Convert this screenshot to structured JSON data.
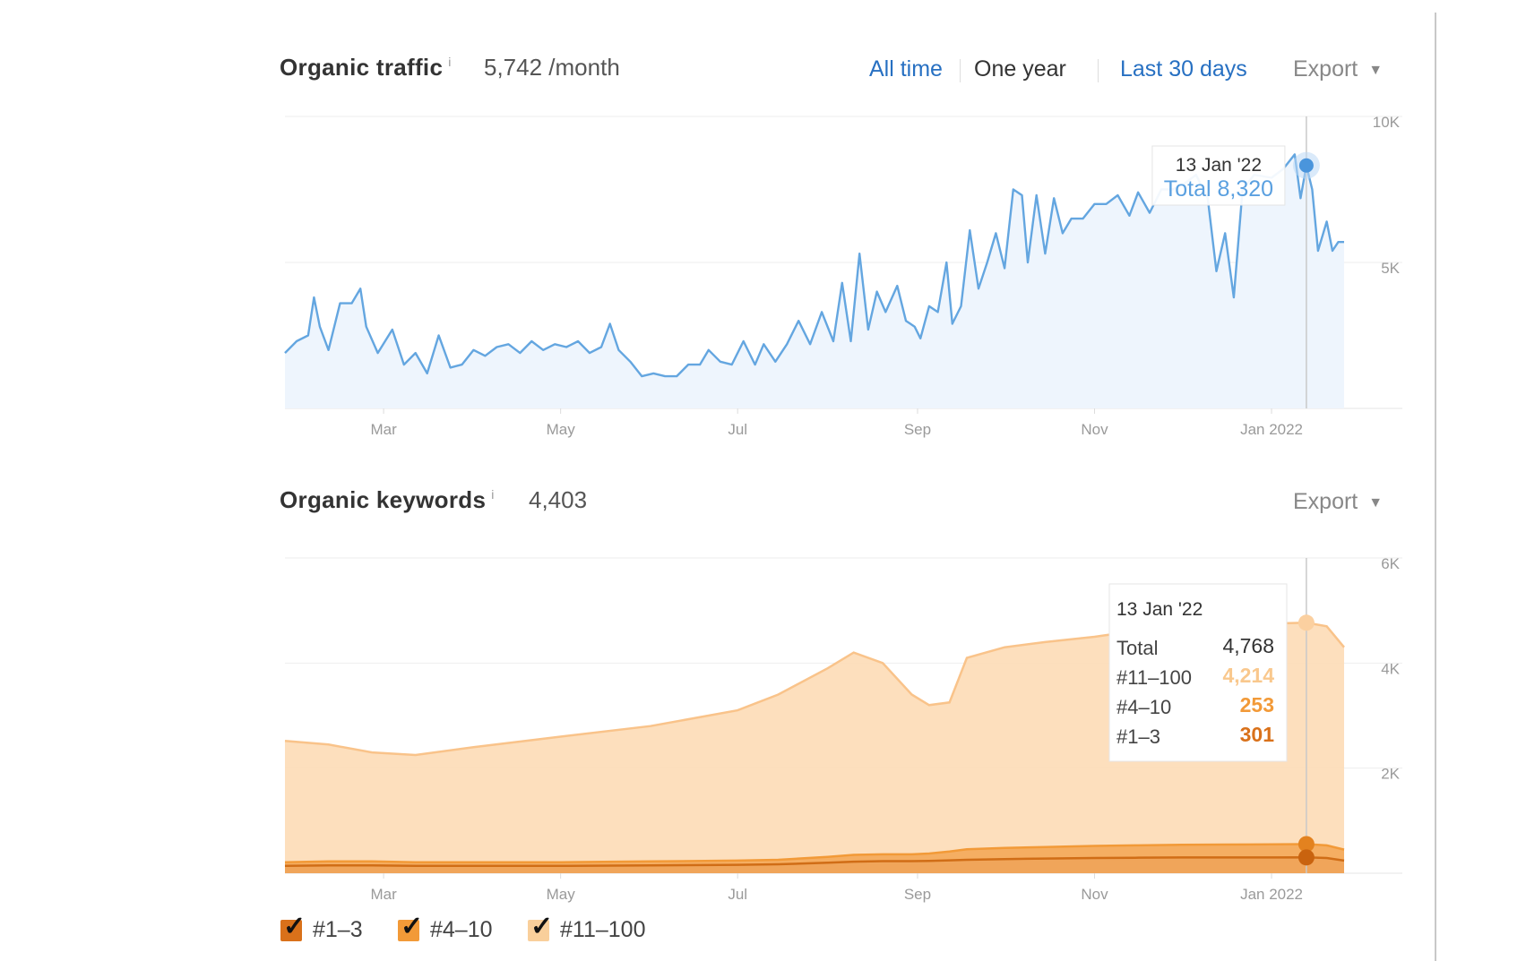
{
  "traffic": {
    "title": "Organic traffic",
    "info": "i",
    "value": "5,742 /month",
    "tabs": [
      {
        "label": "All time",
        "active": false
      },
      {
        "label": "One year",
        "active": true
      },
      {
        "label": "Last 30 days",
        "active": false
      }
    ],
    "export_label": "Export",
    "caret": "▼"
  },
  "keywords": {
    "title": "Organic keywords",
    "info": "i",
    "value": "4,403",
    "export_label": "Export",
    "caret": "▼"
  },
  "legend": [
    {
      "label": "#1–3",
      "color": "#d9711a",
      "check": "✓"
    },
    {
      "label": "#4–10",
      "color": "#f29a38",
      "check": "✓"
    },
    {
      "label": "#11–100",
      "color": "#f9cf9b",
      "check": "✓"
    }
  ],
  "colors": {
    "traffic_line": "#64a6e0",
    "traffic_fill": "#eef5fd",
    "tooltip_total": "#5aa0e0"
  },
  "chart_data": [
    {
      "type": "line",
      "title": "Organic traffic",
      "x_range": [
        "2021-01-26",
        "2022-01-26"
      ],
      "x_ticks": [
        {
          "date": "2021-03-01",
          "label": "Mar"
        },
        {
          "date": "2021-05-01",
          "label": "May"
        },
        {
          "date": "2021-07-01",
          "label": "Jul"
        },
        {
          "date": "2021-09-01",
          "label": "Sep"
        },
        {
          "date": "2021-11-01",
          "label": "Nov"
        },
        {
          "date": "2022-01-01",
          "label": "Jan 2022"
        }
      ],
      "y_ticks": [
        {
          "value": 10000,
          "label": "10K"
        },
        {
          "value": 5000,
          "label": "5K"
        }
      ],
      "ylim": [
        0,
        10000
      ],
      "grid": true,
      "series": [
        {
          "points": [
            [
              "2021-01-26",
              1900
            ],
            [
              "2021-01-30",
              2300
            ],
            [
              "2021-02-03",
              2500
            ],
            [
              "2021-02-05",
              3800
            ],
            [
              "2021-02-07",
              2800
            ],
            [
              "2021-02-10",
              2000
            ],
            [
              "2021-02-14",
              3600
            ],
            [
              "2021-02-18",
              3600
            ],
            [
              "2021-02-21",
              4100
            ],
            [
              "2021-02-23",
              2800
            ],
            [
              "2021-02-27",
              1900
            ],
            [
              "2021-03-04",
              2700
            ],
            [
              "2021-03-08",
              1500
            ],
            [
              "2021-03-12",
              1900
            ],
            [
              "2021-03-16",
              1200
            ],
            [
              "2021-03-20",
              2500
            ],
            [
              "2021-03-24",
              1400
            ],
            [
              "2021-03-28",
              1500
            ],
            [
              "2021-04-01",
              2000
            ],
            [
              "2021-04-05",
              1800
            ],
            [
              "2021-04-09",
              2100
            ],
            [
              "2021-04-13",
              2200
            ],
            [
              "2021-04-17",
              1900
            ],
            [
              "2021-04-21",
              2300
            ],
            [
              "2021-04-25",
              2000
            ],
            [
              "2021-04-29",
              2200
            ],
            [
              "2021-05-03",
              2100
            ],
            [
              "2021-05-07",
              2300
            ],
            [
              "2021-05-11",
              1900
            ],
            [
              "2021-05-15",
              2100
            ],
            [
              "2021-05-18",
              2900
            ],
            [
              "2021-05-21",
              2000
            ],
            [
              "2021-05-25",
              1600
            ],
            [
              "2021-05-29",
              1100
            ],
            [
              "2021-06-02",
              1200
            ],
            [
              "2021-06-06",
              1100
            ],
            [
              "2021-06-10",
              1100
            ],
            [
              "2021-06-14",
              1500
            ],
            [
              "2021-06-18",
              1500
            ],
            [
              "2021-06-21",
              2000
            ],
            [
              "2021-06-25",
              1600
            ],
            [
              "2021-06-29",
              1500
            ],
            [
              "2021-07-03",
              2300
            ],
            [
              "2021-07-07",
              1500
            ],
            [
              "2021-07-10",
              2200
            ],
            [
              "2021-07-14",
              1600
            ],
            [
              "2021-07-18",
              2200
            ],
            [
              "2021-07-22",
              3000
            ],
            [
              "2021-07-26",
              2200
            ],
            [
              "2021-07-30",
              3300
            ],
            [
              "2021-08-03",
              2300
            ],
            [
              "2021-08-06",
              4300
            ],
            [
              "2021-08-09",
              2300
            ],
            [
              "2021-08-12",
              5300
            ],
            [
              "2021-08-15",
              2700
            ],
            [
              "2021-08-18",
              4000
            ],
            [
              "2021-08-21",
              3300
            ],
            [
              "2021-08-25",
              4200
            ],
            [
              "2021-08-28",
              3000
            ],
            [
              "2021-08-31",
              2800
            ],
            [
              "2021-09-02",
              2400
            ],
            [
              "2021-09-05",
              3500
            ],
            [
              "2021-09-08",
              3300
            ],
            [
              "2021-09-11",
              5000
            ],
            [
              "2021-09-13",
              2900
            ],
            [
              "2021-09-16",
              3500
            ],
            [
              "2021-09-19",
              6100
            ],
            [
              "2021-09-22",
              4100
            ],
            [
              "2021-09-25",
              5000
            ],
            [
              "2021-09-28",
              6000
            ],
            [
              "2021-10-01",
              4800
            ],
            [
              "2021-10-04",
              7500
            ],
            [
              "2021-10-07",
              7300
            ],
            [
              "2021-10-09",
              5000
            ],
            [
              "2021-10-12",
              7300
            ],
            [
              "2021-10-15",
              5300
            ],
            [
              "2021-10-18",
              7200
            ],
            [
              "2021-10-21",
              6000
            ],
            [
              "2021-10-24",
              6500
            ],
            [
              "2021-10-28",
              6500
            ],
            [
              "2021-11-01",
              7000
            ],
            [
              "2021-11-05",
              7000
            ],
            [
              "2021-11-09",
              7300
            ],
            [
              "2021-11-13",
              6600
            ],
            [
              "2021-11-16",
              7400
            ],
            [
              "2021-11-20",
              6700
            ],
            [
              "2021-11-24",
              7500
            ],
            [
              "2021-11-28",
              7500
            ],
            [
              "2021-12-02",
              7700
            ],
            [
              "2021-12-06",
              8000
            ],
            [
              "2021-12-10",
              7200
            ],
            [
              "2021-12-13",
              4700
            ],
            [
              "2021-12-16",
              6000
            ],
            [
              "2021-12-19",
              3800
            ],
            [
              "2021-12-22",
              7500
            ],
            [
              "2021-12-26",
              8000
            ],
            [
              "2022-01-01",
              7900
            ],
            [
              "2022-01-05",
              8200
            ],
            [
              "2022-01-09",
              8700
            ],
            [
              "2022-01-11",
              7200
            ],
            [
              "2022-01-13",
              8320
            ],
            [
              "2022-01-15",
              7500
            ],
            [
              "2022-01-17",
              5400
            ],
            [
              "2022-01-20",
              6400
            ],
            [
              "2022-01-22",
              5400
            ],
            [
              "2022-01-24",
              5700
            ],
            [
              "2022-01-26",
              5700
            ]
          ]
        }
      ],
      "tooltip": {
        "date": "13 Jan '22",
        "x": "2022-01-13",
        "text": "Total 8,320",
        "value": 8320
      }
    },
    {
      "type": "area",
      "title": "Organic keywords",
      "x_range": [
        "2021-01-26",
        "2022-01-26"
      ],
      "x_ticks": [
        {
          "date": "2021-03-01",
          "label": "Mar"
        },
        {
          "date": "2021-05-01",
          "label": "May"
        },
        {
          "date": "2021-07-01",
          "label": "Jul"
        },
        {
          "date": "2021-09-01",
          "label": "Sep"
        },
        {
          "date": "2021-11-01",
          "label": "Nov"
        },
        {
          "date": "2022-01-01",
          "label": "Jan 2022"
        }
      ],
      "y_ticks": [
        {
          "value": 6000,
          "label": "6K"
        },
        {
          "value": 4000,
          "label": "4K"
        },
        {
          "value": 2000,
          "label": "2K"
        }
      ],
      "ylim": [
        0,
        6000
      ],
      "grid": true,
      "stacked": true,
      "x": [
        "2021-01-26",
        "2021-02-10",
        "2021-02-25",
        "2021-03-12",
        "2021-04-01",
        "2021-05-01",
        "2021-06-01",
        "2021-07-01",
        "2021-07-15",
        "2021-08-01",
        "2021-08-10",
        "2021-08-20",
        "2021-08-30",
        "2021-09-05",
        "2021-09-12",
        "2021-09-18",
        "2021-10-01",
        "2021-10-15",
        "2021-11-01",
        "2021-11-15",
        "2021-12-01",
        "2021-12-15",
        "2022-01-01",
        "2022-01-13",
        "2022-01-20",
        "2022-01-26"
      ],
      "series": [
        {
          "name": "#1–3",
          "values": [
            140,
            150,
            150,
            140,
            140,
            140,
            150,
            160,
            170,
            200,
            220,
            230,
            230,
            235,
            245,
            255,
            270,
            280,
            290,
            295,
            300,
            300,
            300,
            301,
            290,
            240
          ]
        },
        {
          "name": "#4–10",
          "values": [
            70,
            75,
            75,
            70,
            70,
            70,
            75,
            80,
            85,
            110,
            130,
            130,
            130,
            140,
            170,
            200,
            210,
            220,
            230,
            235,
            240,
            245,
            250,
            253,
            240,
            210
          ]
        },
        {
          "name": "#11–100",
          "values": [
            2310,
            2225,
            2075,
            2040,
            2190,
            2390,
            2575,
            2860,
            3145,
            3590,
            3850,
            3640,
            3040,
            2825,
            2835,
            3645,
            3820,
            3900,
            3980,
            4080,
            4160,
            4205,
            4200,
            4214,
            4170,
            3850
          ]
        }
      ],
      "tooltip": {
        "date": "13 Jan '22",
        "x": "2022-01-13",
        "rows": [
          {
            "label": "Total",
            "value": "4,768",
            "color": "#333"
          },
          {
            "label": "#11–100",
            "value": "4,214",
            "color": "#f9c88d"
          },
          {
            "label": "#4–10",
            "value": "253",
            "color": "#f29a38"
          },
          {
            "label": "#1–3",
            "value": "301",
            "color": "#d9711a"
          }
        ]
      }
    }
  ]
}
